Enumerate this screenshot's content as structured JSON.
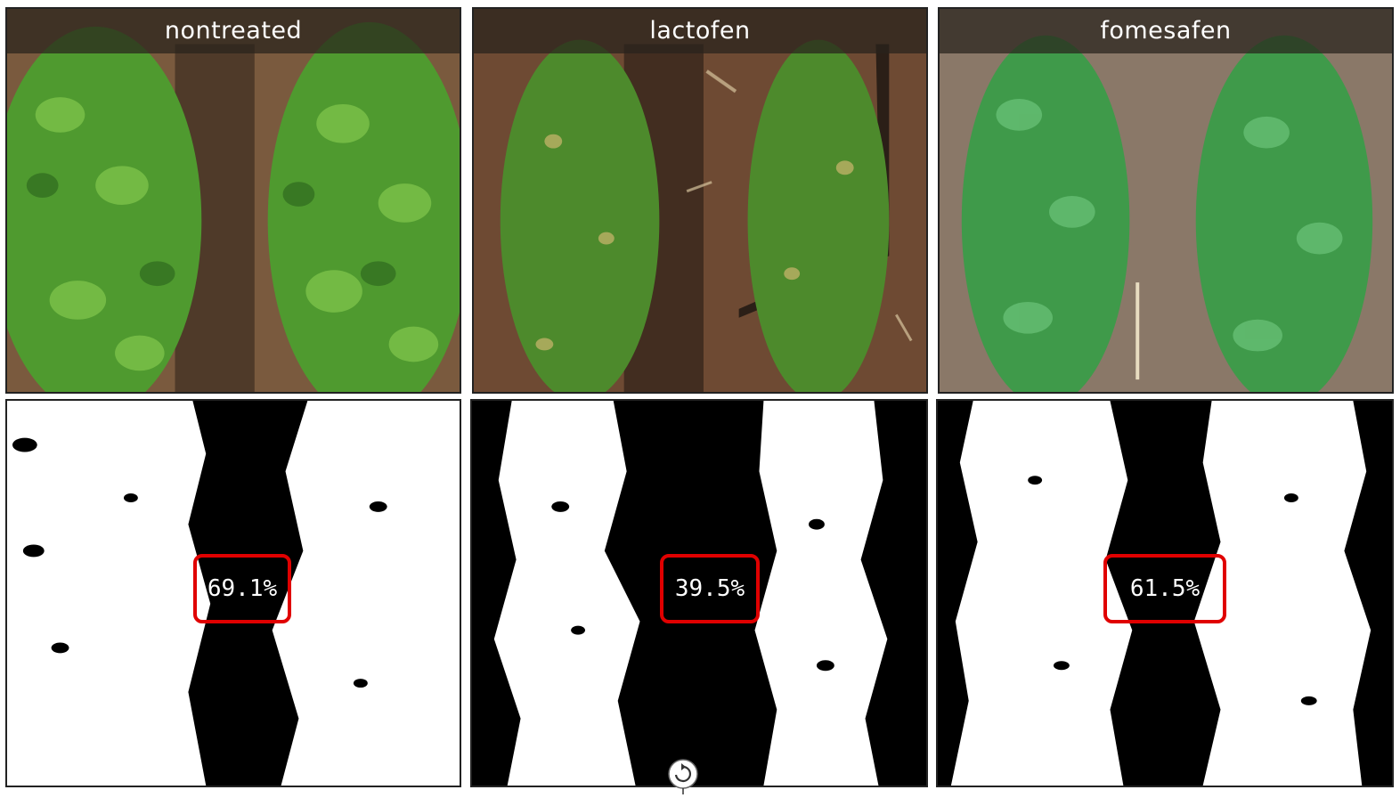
{
  "panels": [
    {
      "label": "nontreated",
      "coverage": "69.1%",
      "soil_color": "#7a5a3e",
      "leaf_color": "#4f9a2f"
    },
    {
      "label": "lactofen",
      "coverage": "39.5%",
      "soil_color": "#6e4a33",
      "leaf_color": "#4d8a2c"
    },
    {
      "label": "fomesafen",
      "coverage": "61.5%",
      "soil_color": "#8a7868",
      "leaf_color": "#3f9a4a"
    }
  ],
  "colors": {
    "highlight_box": "#e00000",
    "mask_background": "#000000",
    "mask_foreground": "#ffffff"
  },
  "icons": {
    "bottom_center": "rotate-icon"
  }
}
